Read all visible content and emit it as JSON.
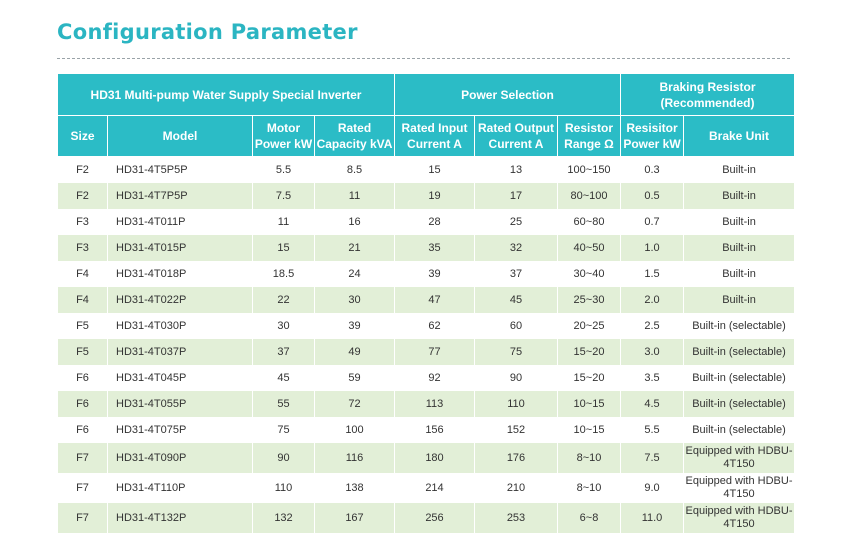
{
  "title": "Configuration Parameter",
  "table": {
    "group_headers": {
      "series": "HD31 Multi-pump Water Supply Special Inverter",
      "power_selection": "Power Selection",
      "braking_resistor": "Braking Resistor (Recommended)"
    },
    "columns": {
      "size": "Size",
      "model": "Model",
      "motor_power": "Motor Power kW",
      "rated_capacity": "Rated Capacity kVA",
      "rated_input_current": "Rated Input Current A",
      "rated_output_current": "Rated Output Current A",
      "resistor_range": "Resistor Range Ω",
      "resistor_power": "Resisitor Power kW",
      "brake_unit": "Brake Unit"
    },
    "rows": [
      [
        "F2",
        "HD31-4T5P5P",
        "5.5",
        "8.5",
        "15",
        "13",
        "100~150",
        "0.3",
        "Built-in"
      ],
      [
        "F2",
        "HD31-4T7P5P",
        "7.5",
        "11",
        "19",
        "17",
        "80~100",
        "0.5",
        "Built-in"
      ],
      [
        "F3",
        "HD31-4T011P",
        "11",
        "16",
        "28",
        "25",
        "60~80",
        "0.7",
        "Built-in"
      ],
      [
        "F3",
        "HD31-4T015P",
        "15",
        "21",
        "35",
        "32",
        "40~50",
        "1.0",
        "Built-in"
      ],
      [
        "F4",
        "HD31-4T018P",
        "18.5",
        "24",
        "39",
        "37",
        "30~40",
        "1.5",
        "Built-in"
      ],
      [
        "F4",
        "HD31-4T022P",
        "22",
        "30",
        "47",
        "45",
        "25~30",
        "2.0",
        "Built-in"
      ],
      [
        "F5",
        "HD31-4T030P",
        "30",
        "39",
        "62",
        "60",
        "20~25",
        "2.5",
        "Built-in (selectable)"
      ],
      [
        "F5",
        "HD31-4T037P",
        "37",
        "49",
        "77",
        "75",
        "15~20",
        "3.0",
        "Built-in (selectable)"
      ],
      [
        "F6",
        "HD31-4T045P",
        "45",
        "59",
        "92",
        "90",
        "15~20",
        "3.5",
        "Built-in (selectable)"
      ],
      [
        "F6",
        "HD31-4T055P",
        "55",
        "72",
        "113",
        "110",
        "10~15",
        "4.5",
        "Built-in (selectable)"
      ],
      [
        "F6",
        "HD31-4T075P",
        "75",
        "100",
        "156",
        "152",
        "10~15",
        "5.5",
        "Built-in (selectable)"
      ],
      [
        "F7",
        "HD31-4T090P",
        "90",
        "116",
        "180",
        "176",
        "8~10",
        "7.5",
        "Equipped with HDBU-4T150"
      ],
      [
        "F7",
        "HD31-4T110P",
        "110",
        "138",
        "214",
        "210",
        "8~10",
        "9.0",
        "Equipped with HDBU-4T150"
      ],
      [
        "F7",
        "HD31-4T132P",
        "132",
        "167",
        "256",
        "253",
        "6~8",
        "11.0",
        "Equipped with HDBU-4T150"
      ]
    ]
  },
  "colors": {
    "title": "#2bb5c2",
    "header_bg": "#2bbcc6",
    "row_alt_bg": "#e2efd7"
  }
}
